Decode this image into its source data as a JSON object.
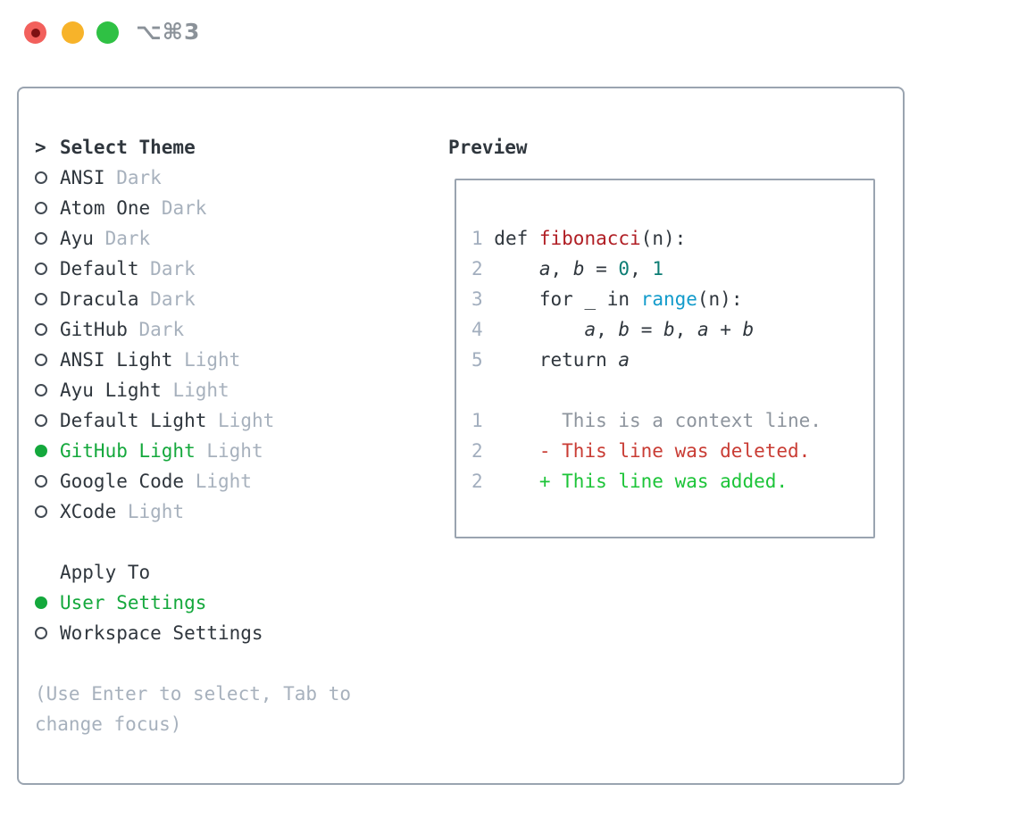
{
  "window": {
    "title": "⌥⌘3",
    "traffic_lights": {
      "close": "close",
      "minimize": "minimize",
      "zoom": "zoom"
    }
  },
  "selector": {
    "prompt": ">",
    "title": "Select Theme",
    "items": [
      {
        "name": "ANSI",
        "variant": "Dark",
        "selected": false
      },
      {
        "name": "Atom One",
        "variant": "Dark",
        "selected": false
      },
      {
        "name": "Ayu",
        "variant": "Dark",
        "selected": false
      },
      {
        "name": "Default",
        "variant": "Dark",
        "selected": false
      },
      {
        "name": "Dracula",
        "variant": "Dark",
        "selected": false
      },
      {
        "name": "GitHub",
        "variant": "Dark",
        "selected": false
      },
      {
        "name": "ANSI Light",
        "variant": "Light",
        "selected": false
      },
      {
        "name": "Ayu Light",
        "variant": "Light",
        "selected": false
      },
      {
        "name": "Default Light",
        "variant": "Light",
        "selected": false
      },
      {
        "name": "GitHub Light",
        "variant": "Light",
        "selected": true
      },
      {
        "name": "Google Code",
        "variant": "Light",
        "selected": false
      },
      {
        "name": "XCode",
        "variant": "Light",
        "selected": false
      }
    ],
    "apply_to": {
      "title": "Apply To",
      "options": [
        {
          "name": "User Settings",
          "selected": true
        },
        {
          "name": "Workspace Settings",
          "selected": false
        }
      ]
    },
    "hint_lines": [
      "(Use Enter to select, Tab to",
      "change focus)"
    ]
  },
  "preview": {
    "title": "Preview",
    "lines": [
      {
        "num": "1",
        "tokens": [
          {
            "t": "def ",
            "c": "kw"
          },
          {
            "t": "fibonacci",
            "c": "fn"
          },
          {
            "t": "(n):",
            "c": "plain"
          }
        ]
      },
      {
        "num": "2",
        "tokens": [
          {
            "t": "    ",
            "c": "plain"
          },
          {
            "t": "a",
            "c": "var"
          },
          {
            "t": ", ",
            "c": "plain"
          },
          {
            "t": "b",
            "c": "var"
          },
          {
            "t": " = ",
            "c": "plain"
          },
          {
            "t": "0",
            "c": "num"
          },
          {
            "t": ", ",
            "c": "plain"
          },
          {
            "t": "1",
            "c": "num"
          }
        ]
      },
      {
        "num": "3",
        "tokens": [
          {
            "t": "    for _ in ",
            "c": "plain"
          },
          {
            "t": "range",
            "c": "call"
          },
          {
            "t": "(n):",
            "c": "plain"
          }
        ]
      },
      {
        "num": "4",
        "tokens": [
          {
            "t": "        ",
            "c": "plain"
          },
          {
            "t": "a",
            "c": "var"
          },
          {
            "t": ", ",
            "c": "plain"
          },
          {
            "t": "b",
            "c": "var"
          },
          {
            "t": " = ",
            "c": "plain"
          },
          {
            "t": "b",
            "c": "var"
          },
          {
            "t": ", ",
            "c": "plain"
          },
          {
            "t": "a",
            "c": "var"
          },
          {
            "t": " + ",
            "c": "plain"
          },
          {
            "t": "b",
            "c": "var"
          }
        ]
      },
      {
        "num": "5",
        "tokens": [
          {
            "t": "    return ",
            "c": "plain"
          },
          {
            "t": "a",
            "c": "var"
          }
        ]
      },
      {
        "num": "",
        "tokens": []
      },
      {
        "num": "1",
        "tokens": [
          {
            "t": "      This is a context line.",
            "c": "ctx"
          }
        ]
      },
      {
        "num": "2",
        "tokens": [
          {
            "t": "    - This line was deleted.",
            "c": "del"
          }
        ]
      },
      {
        "num": "2",
        "tokens": [
          {
            "t": "    + This line was added.",
            "c": "add"
          }
        ]
      }
    ]
  },
  "colors": {
    "text": "#2f363d",
    "muted": "#a7b1bd",
    "gutter": "#a2aebe",
    "ctx": "#8d949d",
    "fn": "#b01e24",
    "numlit": "#0c7d74",
    "call": "#129bcb",
    "del": "#c93c34",
    "add": "#1cc438",
    "sel": "#14a83c",
    "border": "#9aa4b0",
    "title": "#8b9299",
    "light_red": "#f2605c",
    "light_red_dot": "#7e1113",
    "light_yellow": "#f7b32a",
    "light_green": "#2fc144"
  }
}
